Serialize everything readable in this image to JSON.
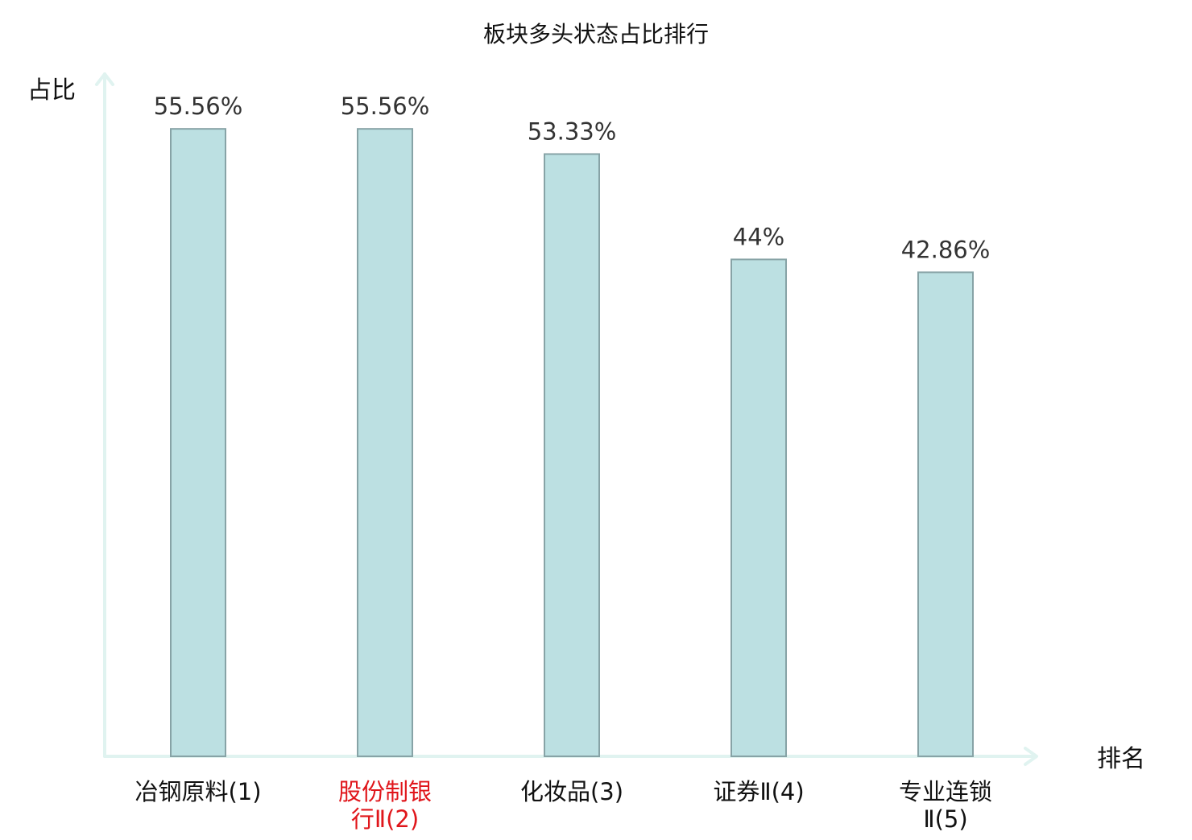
{
  "chart_data": {
    "type": "bar",
    "title": "板块多头状态占比排行",
    "ylabel": "占比",
    "xlabel": "排名",
    "categories": [
      [
        "冶钢原料(1)"
      ],
      [
        "股份制银",
        "行Ⅱ(2)"
      ],
      [
        "化妆品(3)"
      ],
      [
        "证券Ⅱ(4)"
      ],
      [
        "专业连锁",
        "Ⅱ(5)"
      ]
    ],
    "values": [
      55.56,
      55.56,
      53.33,
      44,
      42.86
    ],
    "value_labels": [
      "55.56%",
      "55.56%",
      "53.33%",
      "44%",
      "42.86%"
    ],
    "highlight_index": 1,
    "ylim": [
      0,
      56
    ],
    "grid": false,
    "colors": {
      "bar_fill": "#bce0e2",
      "bar_stroke": "#87a3a6",
      "axis": "#e0f3f0",
      "text": "#111111",
      "value_text": "#333333",
      "highlight_text": "#e0161b"
    }
  }
}
